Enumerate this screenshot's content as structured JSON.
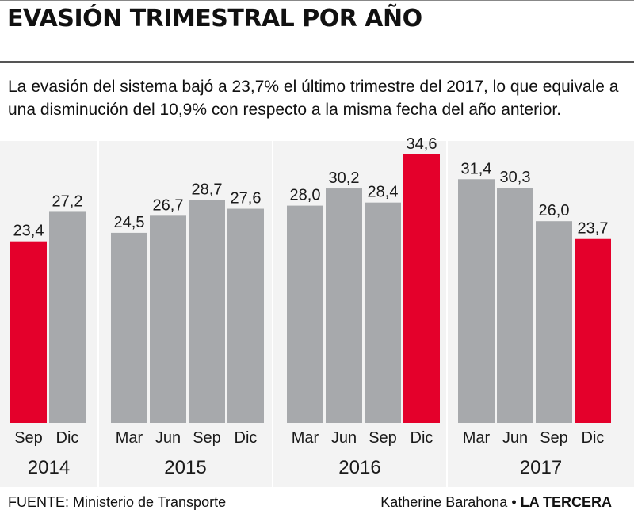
{
  "title": "EVASIÓN TRIMESTRAL POR AÑO",
  "subtitle": "La evasión del sistema bajó a 23,7% el último trimestre del 2017, lo que equivale a una disminución del 10,9% con respecto a la misma fecha del año anterior.",
  "footer": {
    "source": "FUENTE: Ministerio de Transporte",
    "author": "Katherine Barahona",
    "separator": "•",
    "brand": "LA TERCERA"
  },
  "colors": {
    "bar": "#a7a9ac",
    "highlight": "#e4002b",
    "panel": "#f3f3f3",
    "text": "#1a1a1a"
  },
  "chart_data": {
    "type": "bar",
    "title": "EVASIÓN TRIMESTRAL POR AÑO",
    "ylim": [
      0,
      36
    ],
    "grid": false,
    "legend": "none",
    "groups": [
      {
        "year": "2014",
        "categories": [
          "Sep",
          "Dic"
        ],
        "values": [
          23.4,
          27.2
        ],
        "labels": [
          "23,4",
          "27,2"
        ],
        "highlight": [
          true,
          false
        ]
      },
      {
        "year": "2015",
        "categories": [
          "Mar",
          "Jun",
          "Sep",
          "Dic"
        ],
        "values": [
          24.5,
          26.7,
          28.7,
          27.6
        ],
        "labels": [
          "24,5",
          "26,7",
          "28,7",
          "27,6"
        ],
        "highlight": [
          false,
          false,
          false,
          false
        ]
      },
      {
        "year": "2016",
        "categories": [
          "Mar",
          "Jun",
          "Sep",
          "Dic"
        ],
        "values": [
          28.0,
          30.2,
          28.4,
          34.6
        ],
        "labels": [
          "28,0",
          "30,2",
          "28,4",
          "34,6"
        ],
        "highlight": [
          false,
          false,
          false,
          true
        ]
      },
      {
        "year": "2017",
        "categories": [
          "Mar",
          "Jun",
          "Sep",
          "Dic"
        ],
        "values": [
          31.4,
          30.3,
          26.0,
          23.7
        ],
        "labels": [
          "31,4",
          "30,3",
          "26,0",
          "23,7"
        ],
        "highlight": [
          false,
          false,
          false,
          true
        ]
      }
    ]
  }
}
